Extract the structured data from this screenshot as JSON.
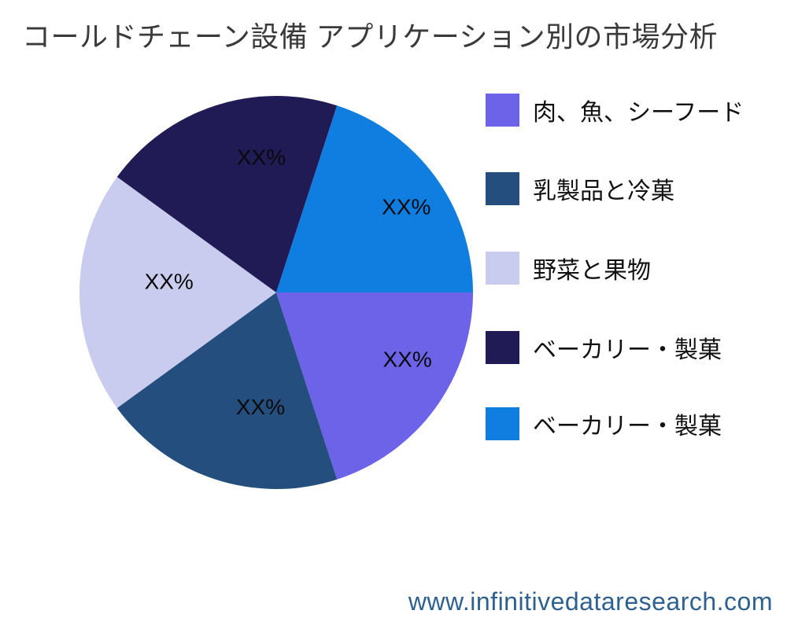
{
  "title": "コールドチェーン設備 アプリケーション別の市場分析",
  "footer": {
    "website": "www.infinitivedataresearch.com"
  },
  "colors": {
    "title_text": "#3a3a3a",
    "legend_text": "#111111",
    "percent_label_text": "#0a0a0a",
    "footer_text": "#2e6190",
    "background": "#ffffff"
  },
  "chart_data": {
    "type": "pie",
    "title": "コールドチェーン設備 アプリケーション別の市場分析",
    "start_angle_deg": 0,
    "direction": "clockwise",
    "legend_position": "right",
    "slices": [
      {
        "label": "肉、魚、シーフード",
        "value": 20,
        "display_value": "XX%",
        "color": "#6C63E8"
      },
      {
        "label": "乳製品と冷菓",
        "value": 20,
        "display_value": "XX%",
        "color": "#234E7D"
      },
      {
        "label": "野菜と果物",
        "value": 20,
        "display_value": "XX%",
        "color": "#C9CCEE"
      },
      {
        "label": "ベーカリー・製菓",
        "value": 20,
        "display_value": "XX%",
        "color": "#201A55"
      },
      {
        "label": "ベーカリー・製菓",
        "value": 20,
        "display_value": "XX%",
        "color": "#107EE0"
      }
    ]
  }
}
